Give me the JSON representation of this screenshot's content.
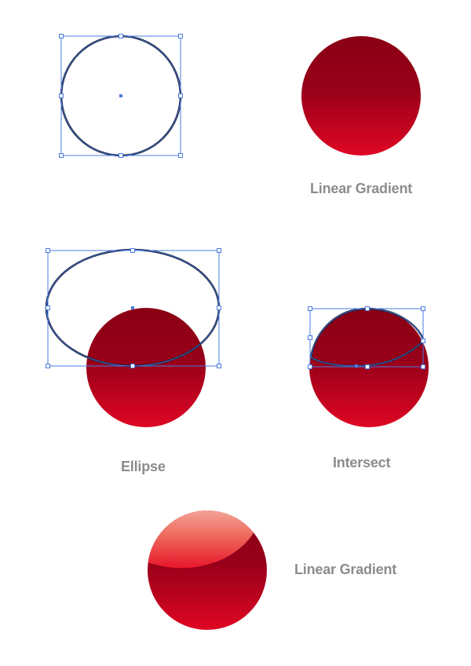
{
  "captions": {
    "linear_gradient_top": "Linear Gradient",
    "ellipse": "Ellipse",
    "intersect": "Intersect",
    "linear_gradient_bottom": "Linear Gradient"
  },
  "colors": {
    "gradient_dark": "#8a0014",
    "gradient_mid": "#98001a",
    "gradient_light": "#df0623",
    "outline": "#17203a",
    "selection": "#4a7be0",
    "highlight_top": "#f6c3b5",
    "highlight_bottom": "#e8162a",
    "caption": "#8c8c8c"
  }
}
